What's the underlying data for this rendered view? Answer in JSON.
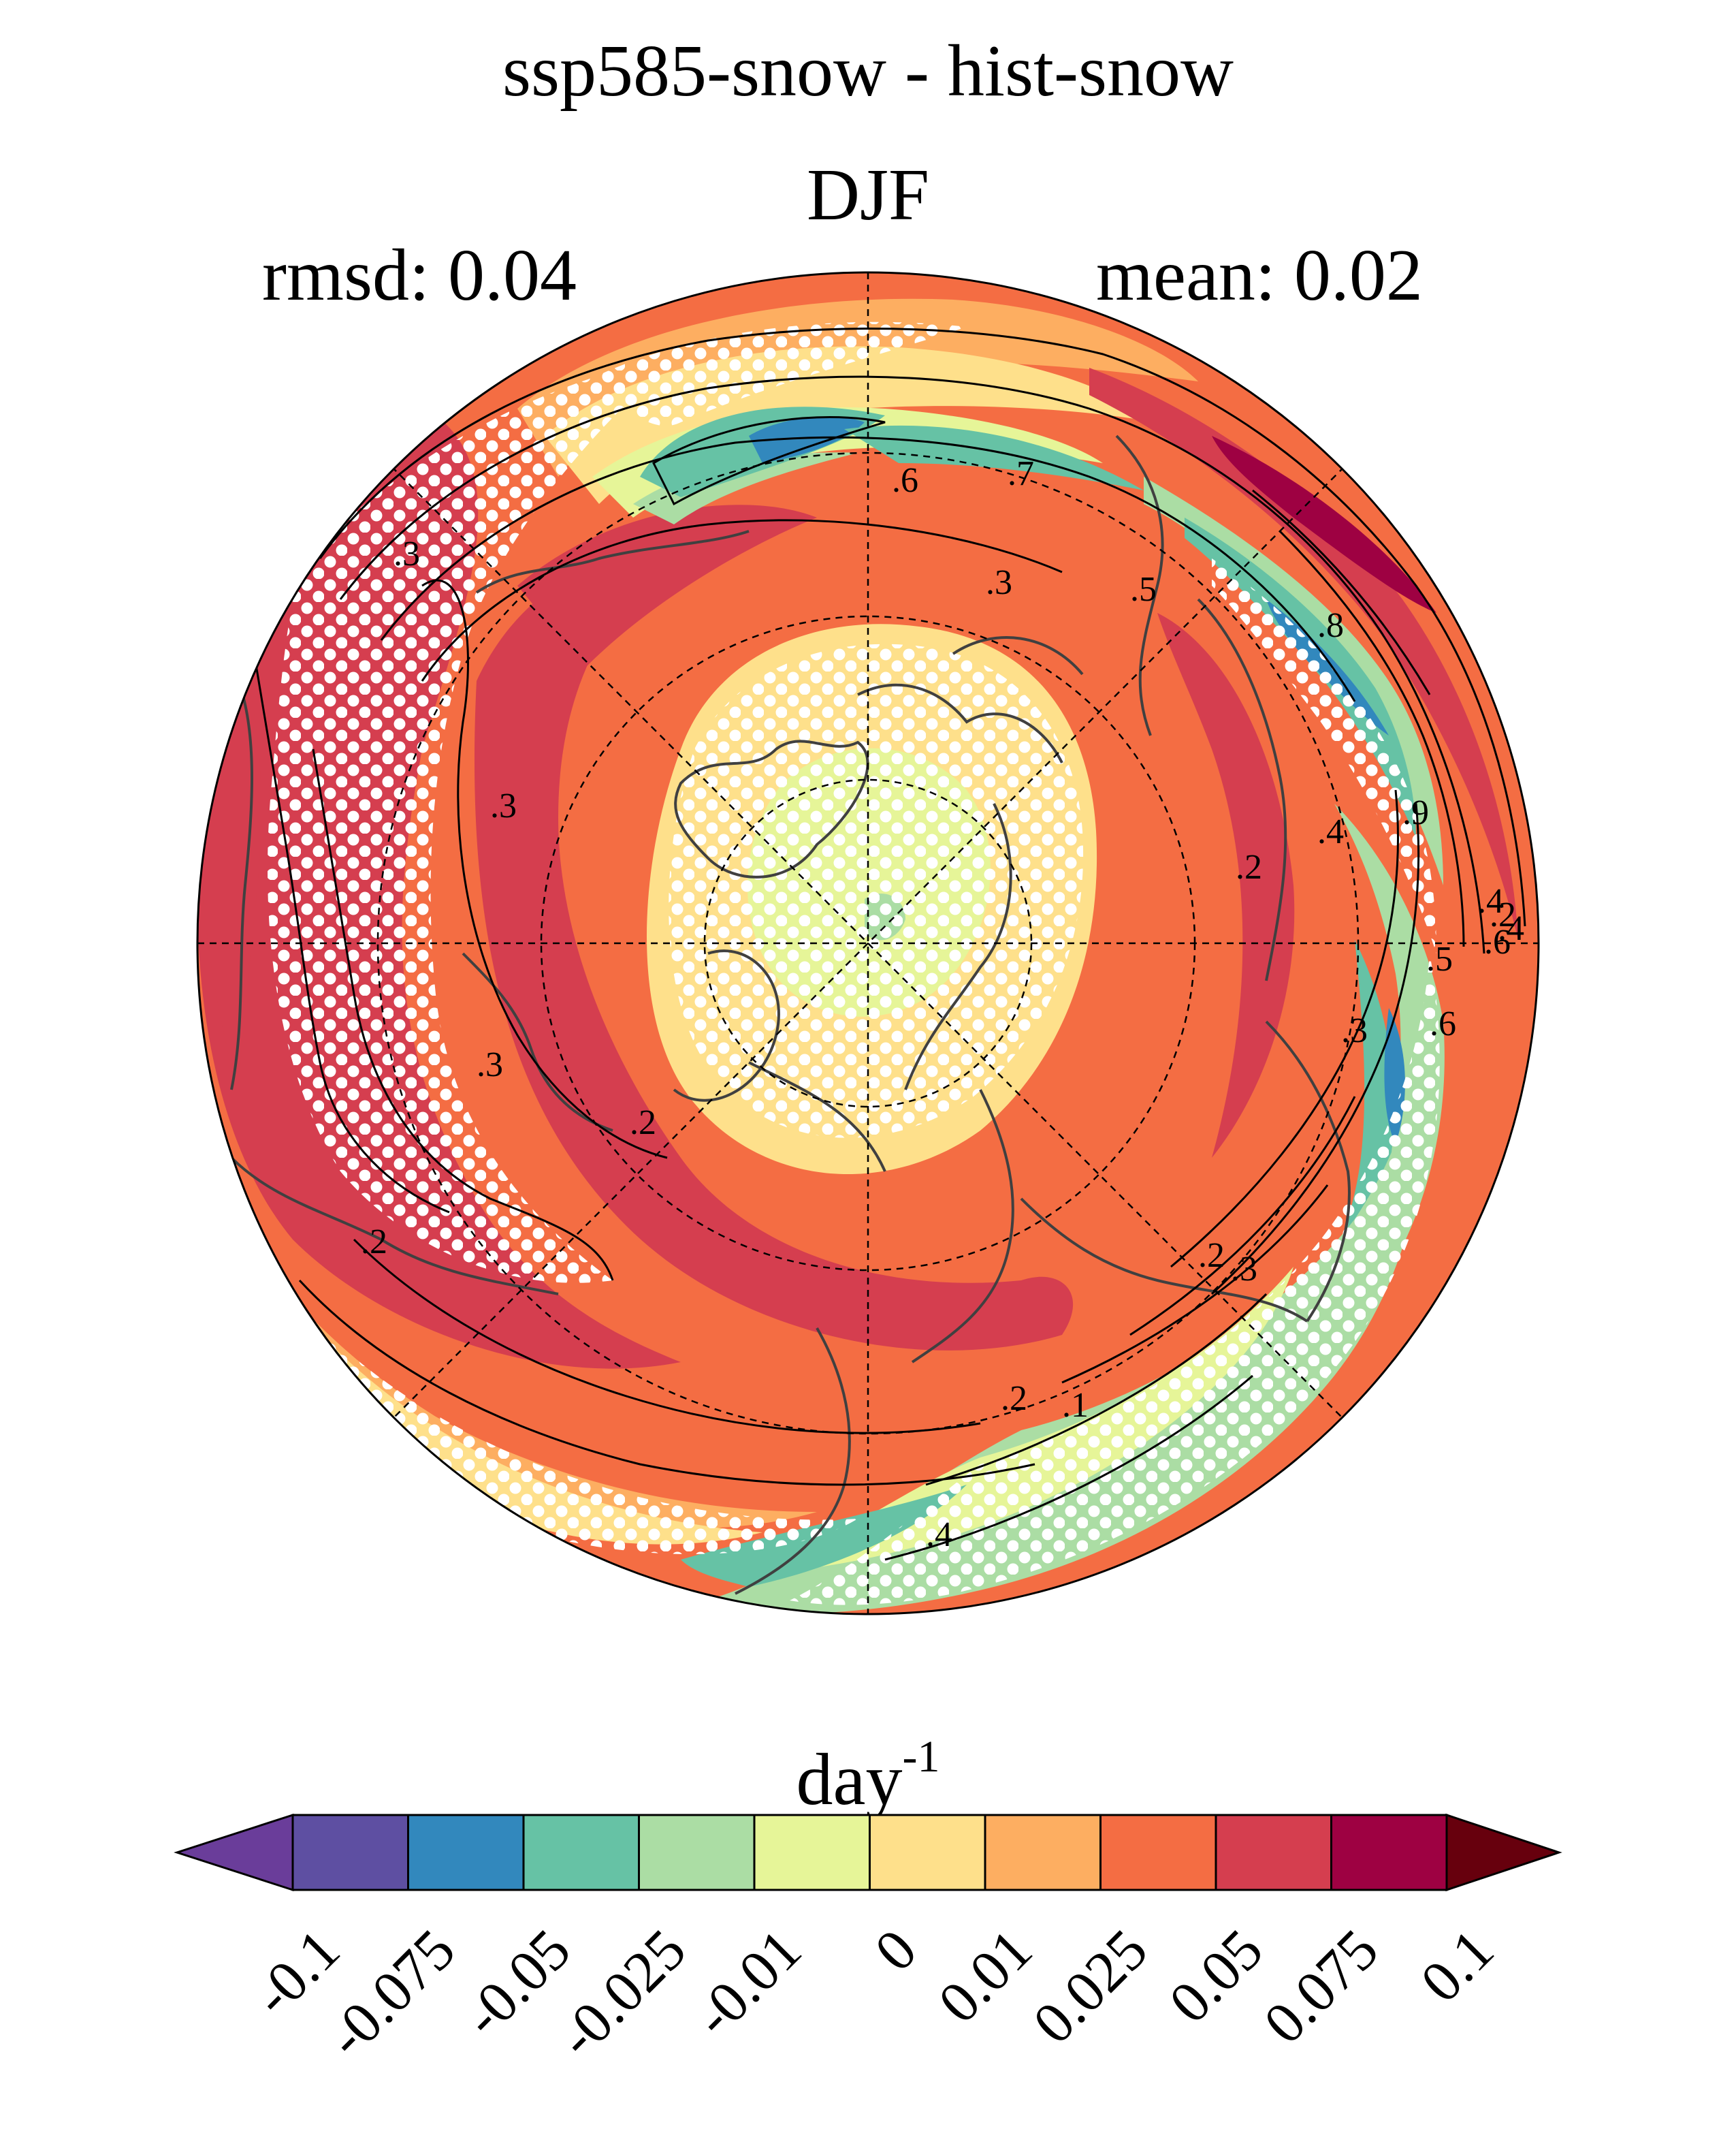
{
  "title": "ssp585-snow - hist-snow",
  "subtitle": "DJF",
  "stat_left": "rmsd: 0.04",
  "stat_right": "mean: 0.02",
  "map": {
    "projection": "north-polar-stereographic",
    "contour_labels": [
      ".7",
      ".6",
      ".5",
      ".3",
      ".3",
      ".3",
      ".3",
      ".2",
      ".2",
      ".2",
      ".2",
      ".1",
      ".8",
      ".9",
      ".4",
      ".4",
      ".5",
      ".6",
      ".2",
      ".3",
      ".4",
      ".6",
      ".3",
      ".4",
      ".2"
    ],
    "colors": {
      "land_outline": "#404040",
      "stipple": "#ffffff",
      "contour": "#000000"
    }
  },
  "colorbar": {
    "unit_base": "day",
    "unit_exp": "-1",
    "ticks": [
      "-0.1",
      "-0.075",
      "-0.05",
      "-0.025",
      "-0.01",
      "0",
      "0.01",
      "0.025",
      "0.05",
      "0.075",
      "0.1"
    ],
    "colors": [
      "#5e4fa2",
      "#3288bd",
      "#66c2a5",
      "#abdda4",
      "#e6f598",
      "#fee08b",
      "#fdae61",
      "#f46d43",
      "#d53e4f",
      "#9e0142"
    ],
    "under_color": "#6a3d9a",
    "over_color": "#67000d"
  }
}
